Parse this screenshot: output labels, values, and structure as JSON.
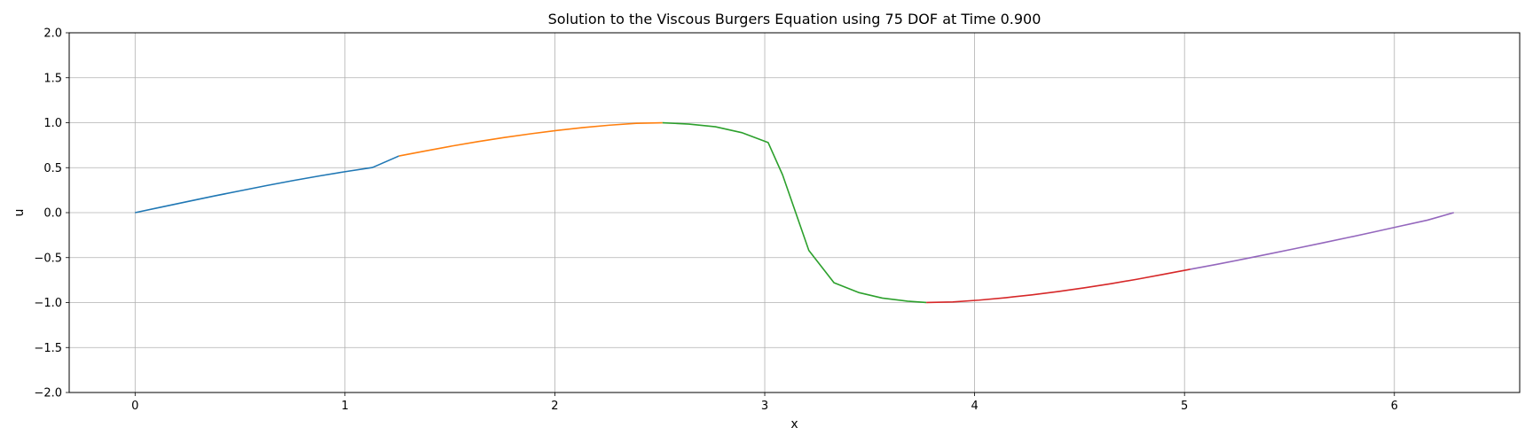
{
  "chart_data": {
    "type": "line",
    "title": "Solution to the Viscous Burgers Equation using 75 DOF at Time 0.900",
    "xlabel": "x",
    "ylabel": "u",
    "xlim": [
      -0.314,
      6.597
    ],
    "ylim": [
      -2.0,
      2.0
    ],
    "x_ticks": [
      0,
      1,
      2,
      3,
      4,
      5,
      6
    ],
    "y_ticks": [
      -2.0,
      -1.5,
      -1.0,
      -0.5,
      0.0,
      0.5,
      1.0,
      1.5,
      2.0
    ],
    "x_tick_labels": [
      "0",
      "1",
      "2",
      "3",
      "4",
      "5",
      "6"
    ],
    "y_tick_labels": [
      "−2.0",
      "−1.5",
      "−1.0",
      "−0.5",
      "0.0",
      "0.5",
      "1.0",
      "1.5",
      "2.0"
    ],
    "grid": true,
    "legend": "none",
    "series": [
      {
        "color": "#1f77b4",
        "x": [
          0.0,
          0.126,
          0.251,
          0.377,
          0.503,
          0.628,
          0.754,
          0.88,
          1.005,
          1.131,
          1.257
        ],
        "y": [
          0.0,
          0.062,
          0.124,
          0.185,
          0.244,
          0.302,
          0.357,
          0.409,
          0.457,
          0.502,
          0.63
        ]
      },
      {
        "color": "#ff7f0e",
        "x": [
          1.257,
          1.382,
          1.508,
          1.634,
          1.759,
          1.885,
          2.011,
          2.136,
          2.262,
          2.388,
          2.513
        ],
        "y": [
          0.63,
          0.685,
          0.74,
          0.79,
          0.836,
          0.877,
          0.914,
          0.946,
          0.973,
          0.993,
          0.999
        ]
      },
      {
        "color": "#2ca02c",
        "x": [
          2.513,
          2.639,
          2.765,
          2.89,
          3.016,
          3.085,
          3.21,
          3.33,
          3.45,
          3.56,
          3.68,
          3.77
        ],
        "y": [
          0.999,
          0.985,
          0.955,
          0.89,
          0.78,
          0.42,
          -0.42,
          -0.78,
          -0.89,
          -0.95,
          -0.985,
          -0.999
        ]
      },
      {
        "color": "#d62728",
        "x": [
          3.77,
          3.896,
          4.021,
          4.147,
          4.273,
          4.398,
          4.524,
          4.65,
          4.775,
          4.901,
          5.027
        ],
        "y": [
          -0.999,
          -0.993,
          -0.973,
          -0.946,
          -0.914,
          -0.877,
          -0.836,
          -0.79,
          -0.74,
          -0.685,
          -0.63
        ]
      },
      {
        "color": "#9467bd",
        "x": [
          5.027,
          5.152,
          5.278,
          5.404,
          5.529,
          5.655,
          5.781,
          5.906,
          6.032,
          6.158,
          6.283
        ],
        "y": [
          -0.63,
          -0.576,
          -0.518,
          -0.459,
          -0.399,
          -0.338,
          -0.276,
          -0.213,
          -0.148,
          -0.083,
          0.0
        ]
      }
    ]
  }
}
